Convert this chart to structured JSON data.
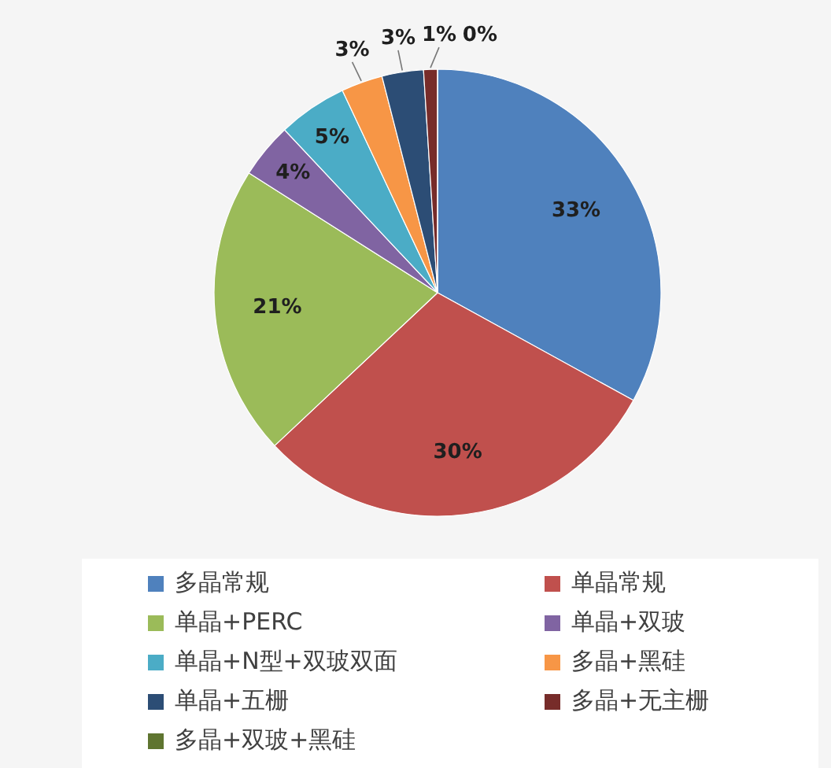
{
  "chart_data": {
    "type": "pie",
    "categories": [
      "多晶常规",
      "单晶常规",
      "单晶+PERC",
      "单晶+双玻",
      "单晶+N型+双玻双面",
      "多晶+黑硅",
      "单晶+五栅",
      "多晶+无主栅",
      "多晶+双玻+黑硅"
    ],
    "values": [
      33,
      30,
      21,
      4,
      5,
      3,
      3,
      1,
      0
    ],
    "value_labels": [
      "33%",
      "30%",
      "21%",
      "4%",
      "5%",
      "3%",
      "3%",
      "1%",
      "0%"
    ],
    "colors": [
      "#4f81bd",
      "#c0504d",
      "#9bbb59",
      "#8064a2",
      "#4bacc6",
      "#f79646",
      "#2c4d75",
      "#772c2a",
      "#5f7530"
    ],
    "legend": "bottom"
  }
}
